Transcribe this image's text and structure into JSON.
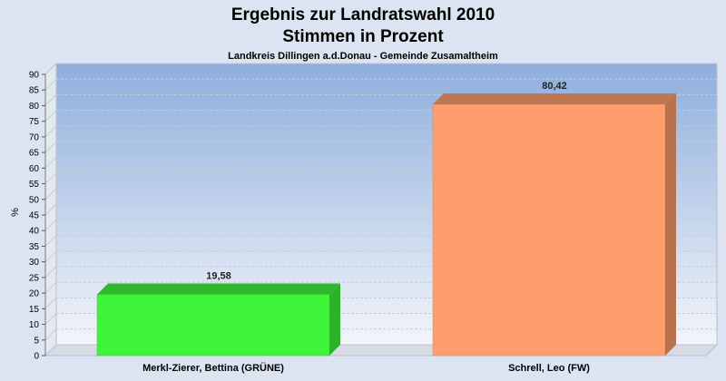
{
  "chart_data": {
    "type": "bar",
    "title": "Ergebnis zur Landratswahl 2010",
    "title_line2": "Stimmen in Prozent",
    "subtitle": "Landkreis Dillingen a.d.Donau - Gemeinde Zusamaltheim",
    "ylabel": "%",
    "xlabel": "",
    "ylim": [
      0,
      90
    ],
    "ytick_step": 5,
    "grid": true,
    "categories": [
      "Merkl-Zierer, Bettina (GRÜNE)",
      "Schrell, Leo (FW)"
    ],
    "values": [
      19.58,
      80.42
    ],
    "value_labels": [
      "19,58",
      "80,42"
    ],
    "colors": [
      "#3ef53a",
      "#ff9e6c"
    ],
    "background_color": "#dde4f1",
    "plot_gradient": [
      "#8eaedc",
      "#f3f5fa"
    ]
  }
}
